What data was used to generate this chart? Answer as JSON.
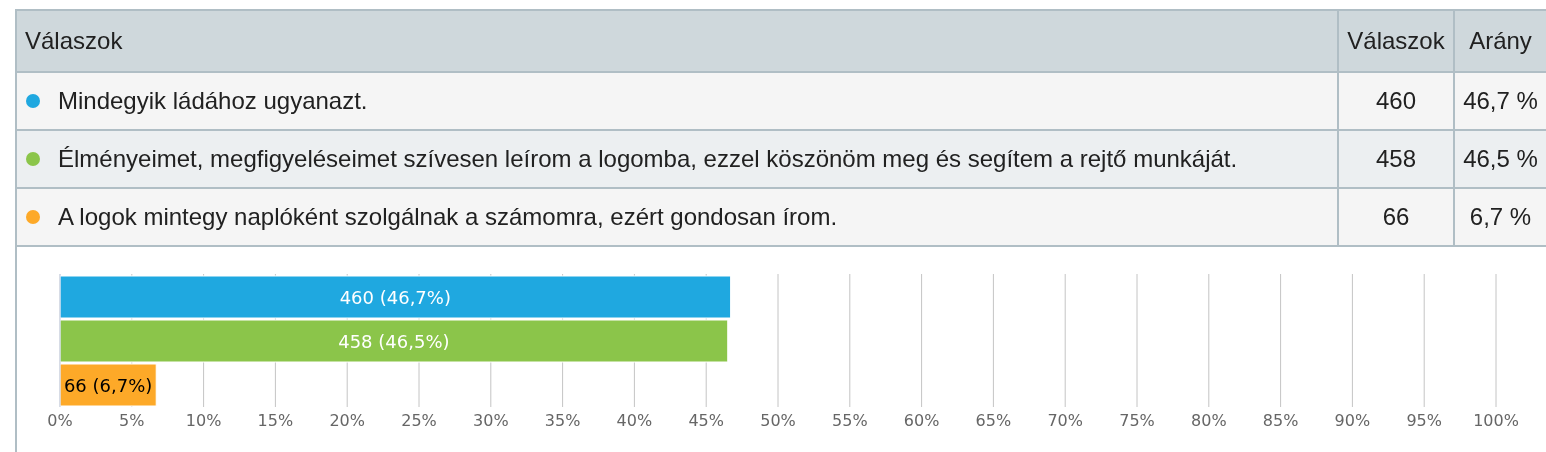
{
  "chart_data": {
    "type": "bar",
    "orientation": "horizontal",
    "legend_title": "Válaszok",
    "categories": [
      null
    ],
    "series": [
      {
        "name": "Mindegyik ládához ugyanazt.",
        "color": "#1fa8e0",
        "values": [
          46.7
        ],
        "value_labels": [
          "460 (46,7%)"
        ]
      },
      {
        "name": "Élményeimet, megfigyeléseimet szívesen leírom a logomba, ezzel köszönöm meg és segítem a rejtő munkáját.",
        "color": "#8bc54a",
        "values": [
          46.5
        ],
        "value_labels": [
          "458 (46,5%)"
        ]
      },
      {
        "name": "A logok mintegy naplóként szolgálnak a számomra, ezért gondosan írom.",
        "color": "#fda928",
        "values": [
          6.7
        ],
        "value_labels": [
          "66 (6,7%)"
        ]
      }
    ],
    "xlim": [
      0,
      100
    ],
    "xticks": [
      {
        "value": 0,
        "label": "0%"
      },
      {
        "value": 5,
        "label": "5%"
      },
      {
        "value": 10,
        "label": "10%"
      },
      {
        "value": 15,
        "label": "15%"
      },
      {
        "value": 20,
        "label": "20%"
      },
      {
        "value": 25,
        "label": "25%"
      },
      {
        "value": 30,
        "label": "30%"
      },
      {
        "value": 35,
        "label": "35%"
      },
      {
        "value": 40,
        "label": "40%"
      },
      {
        "value": 45,
        "label": "45%"
      },
      {
        "value": 50,
        "label": "50%"
      },
      {
        "value": 55,
        "label": "55%"
      },
      {
        "value": 60,
        "label": "60%"
      },
      {
        "value": 65,
        "label": "65%"
      },
      {
        "value": 70,
        "label": "70%"
      },
      {
        "value": 75,
        "label": "75%"
      },
      {
        "value": 80,
        "label": "80%"
      },
      {
        "value": 85,
        "label": "85%"
      },
      {
        "value": 90,
        "label": "90%"
      },
      {
        "value": 95,
        "label": "95%"
      },
      {
        "value": 100,
        "label": "100%"
      }
    ],
    "grid": "x",
    "legend": "top",
    "tick_labels": "x",
    "annotations": [
      "Válaszok",
      "Arány",
      "460",
      "46,7 %",
      "458",
      "46,5 %",
      "66",
      "6,7 %"
    ]
  }
}
